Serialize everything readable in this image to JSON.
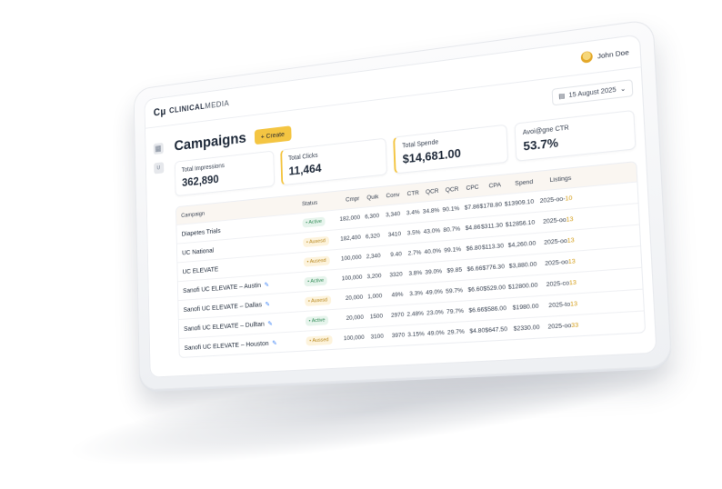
{
  "brand": {
    "mark": "Cµ",
    "name_bold": "CLINICAL",
    "name_light": "MEDIA"
  },
  "user": {
    "name": "John Doe"
  },
  "header": {
    "title": "Campaigns",
    "create_label": "+ Create",
    "date": "15 August 2025"
  },
  "kpis": [
    {
      "label": "Total Impressions",
      "value": "362,890"
    },
    {
      "label": "Total Clicks",
      "value": "11,464"
    },
    {
      "label": "Total Spende",
      "value": "$14,681.00"
    },
    {
      "label": "Avoi@gne CTR",
      "value": "53.7%"
    }
  ],
  "table": {
    "columns": [
      "Campaign",
      "Status",
      "Cmpr",
      "Quik",
      "Conv",
      "CTR",
      "QCR",
      "QCR",
      "CPC",
      "CPA",
      "Spend",
      "Listings"
    ],
    "rows": [
      {
        "name": "Diapetes Trials",
        "status": "Active",
        "status_kind": "active",
        "c1": "182,000",
        "c2": "6,300",
        "c3": "3,340",
        "c4": "3.4%",
        "c5": "34.8%",
        "c6": "90.1%",
        "c7": "$7.86",
        "c8": "$178.80",
        "c9": "$13909.10",
        "l1": "2025-",
        "l2": "oo-",
        "l3": "10"
      },
      {
        "name": "UC National",
        "status": "Ausesd",
        "status_kind": "paused",
        "c1": "182,400",
        "c2": "6,320",
        "c3": "3410",
        "c4": "3.5%",
        "c5": "43.0%",
        "c6": "80.7%",
        "c7": "$4.86",
        "c8": "$311.30",
        "c9": "$12856.10",
        "l1": "2025",
        "l2": "-oo",
        "l3": "13"
      },
      {
        "name": "UC ELEVATE",
        "status": "Ausesd",
        "status_kind": "paused",
        "c1": "100,000",
        "c2": "2,340",
        "c3": "9.40",
        "c4": "2.7%",
        "c5": "40.0%",
        "c6": "99.1%",
        "c7": "$6.80",
        "c8": "$113.30",
        "c9": "$4,260.00",
        "l1": "2025",
        "l2": "-oo",
        "l3": "13"
      },
      {
        "name": "Sanofi UC ELEVATE – Austin",
        "status": "Active",
        "status_kind": "active",
        "c1": "100,000",
        "c2": "3,200",
        "c3": "3320",
        "c4": "3.8%",
        "c5": "39.0%",
        "c6": "$9.85",
        "c7": "$6.66",
        "c8": "$776.30",
        "c9": "$3,880.00",
        "l1": "2025",
        "l2": "-oo",
        "l3": "13"
      },
      {
        "name": "Sanofi UC ELEVATE – Dallas",
        "status": "Ausesd",
        "status_kind": "paused",
        "c1": "20,000",
        "c2": "1,000",
        "c3": "49%",
        "c4": "3.3%",
        "c5": "49.0%",
        "c6": "59.7%",
        "c7": "$6.60",
        "c8": "$529.00",
        "c9": "$12800.00",
        "l1": "2025",
        "l2": "-co",
        "l3": "13"
      },
      {
        "name": "Sanofi UC ELEVATE – Dulltan",
        "status": "Active",
        "status_kind": "active",
        "c1": "20,000",
        "c2": "1500",
        "c3": "2970",
        "c4": "2.48%",
        "c5": "23.0%",
        "c6": "79.7%",
        "c7": "$6.66",
        "c8": "$586.00",
        "c9": "$1980.00",
        "l1": "2025",
        "l2": "-to",
        "l3": "13"
      },
      {
        "name": "Sanofi UC ELEVATE – Houston",
        "status": "Aussed",
        "status_kind": "paused",
        "c1": "100,000",
        "c2": "3100",
        "c3": "3970",
        "c4": "3.15%",
        "c5": "49.0%",
        "c6": "29.7%",
        "c7": "$4.80",
        "c8": "$647.50",
        "c9": "$2330.00",
        "l1": "2025",
        "l2": "-oo",
        "l3": "33"
      }
    ]
  },
  "colors": {
    "accent": "#f4c542",
    "active": "#2f8a55",
    "paused": "#b7871d",
    "ink": "#1f2a3a"
  }
}
